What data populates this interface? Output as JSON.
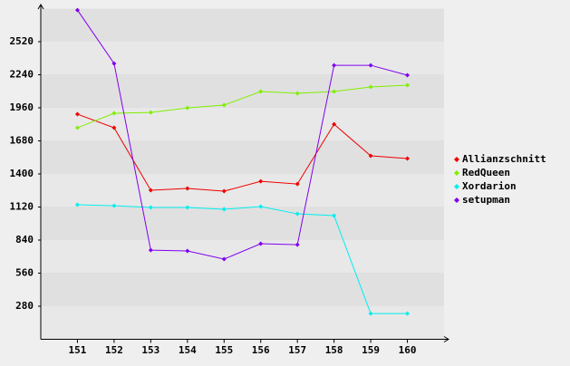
{
  "chart_data": {
    "type": "line",
    "categories": [
      "151",
      "152",
      "153",
      "154",
      "155",
      "156",
      "157",
      "158",
      "159",
      "160"
    ],
    "series": [
      {
        "name": "Allianzschnitt",
        "color": "#ee0000",
        "values": [
          1906,
          1791,
          1262,
          1277,
          1254,
          1338,
          1315,
          1821,
          1553,
          1530
        ]
      },
      {
        "name": "RedQueen",
        "color": "#80ee00",
        "values": [
          1791,
          1914,
          1921,
          1959,
          1983,
          2098,
          2083,
          2098,
          2136,
          2152
        ]
      },
      {
        "name": "Xordarion",
        "color": "#00eeee",
        "values": [
          1139,
          1131,
          1116,
          1116,
          1101,
          1124,
          1062,
          1047,
          218,
          218
        ]
      },
      {
        "name": "setupman",
        "color": "#8000ee",
        "values": [
          2788,
          2335,
          755,
          748,
          679,
          809,
          801,
          2320,
          2320,
          2236
        ]
      }
    ],
    "ylim": [
      0,
      2800
    ],
    "yticks": [
      280,
      560,
      840,
      1120,
      1400,
      1680,
      1960,
      2240,
      2520
    ],
    "grid": true,
    "legend": "right"
  }
}
